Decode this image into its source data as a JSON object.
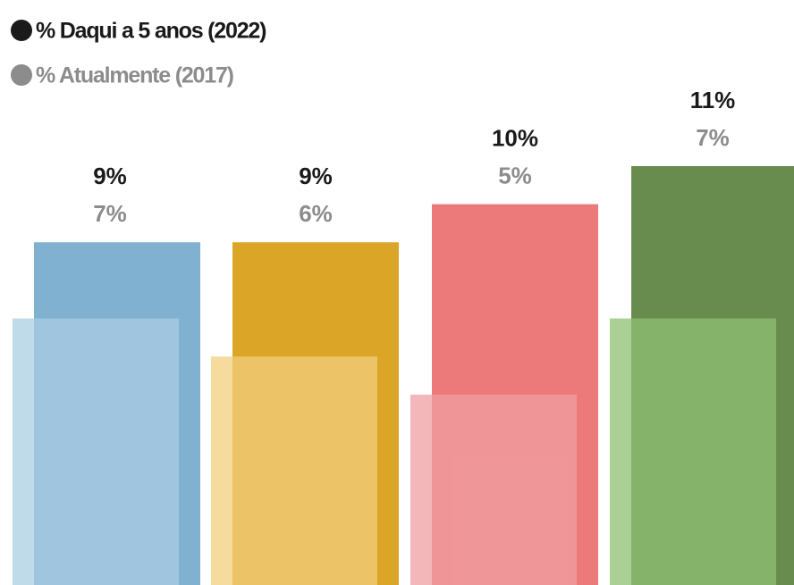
{
  "chart_data": {
    "type": "overlapping-bar",
    "categories": [
      null,
      null,
      null,
      null
    ],
    "ylim": [
      0,
      11
    ],
    "series": [
      {
        "name": "% Daqui a 5 anos (2022)",
        "color": "#1a1a1a",
        "bar_colors": [
          "#80b1d1",
          "#dba528",
          "#ec7a7a",
          "#688c4e"
        ],
        "values": [
          9,
          9,
          10,
          11
        ],
        "value_labels": [
          "9%",
          "9%",
          "10%",
          "11%"
        ]
      },
      {
        "name": "% Atualmente (2017)",
        "color": "#8c8c8c",
        "bar_colors": [
          "#a9cde2",
          "#f2cf7c",
          "#f09fa2",
          "#8fc073"
        ],
        "values": [
          7,
          6,
          5,
          7
        ],
        "value_labels": [
          "7%",
          "6%",
          "5%",
          "7%"
        ]
      }
    ]
  }
}
